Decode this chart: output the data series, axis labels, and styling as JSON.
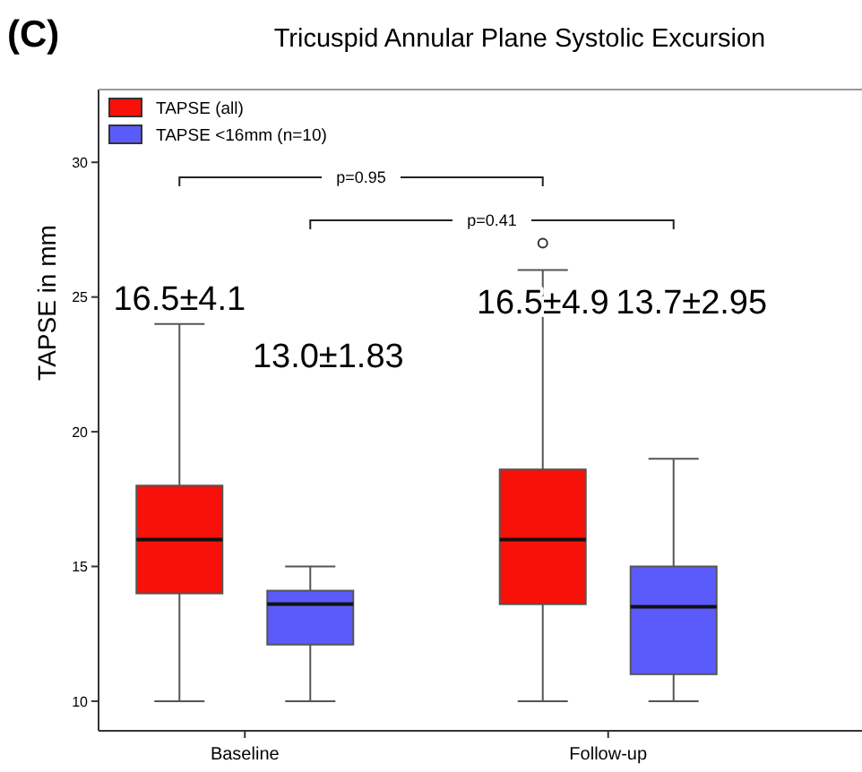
{
  "chart_data": {
    "type": "box",
    "title": "Tricuspid Annular Plane Systolic Excursion",
    "ylabel": "TAPSE in mm",
    "categories": [
      "Baseline",
      "Follow-up"
    ],
    "series": [
      {
        "name": "TAPSE (all)",
        "color": "#f71109",
        "boxes": [
          {
            "low": 10,
            "q1": 14,
            "median": 16,
            "q3": 18,
            "high": 24
          },
          {
            "low": 10,
            "q1": 13.6,
            "median": 16,
            "q3": 18.6,
            "high": 26,
            "outliers": [
              27
            ]
          }
        ]
      },
      {
        "name": "TAPSE <16mm (n=10)",
        "color": "#5b5bfb",
        "boxes": [
          {
            "low": 10,
            "q1": 12.1,
            "median": 13.6,
            "q3": 14.1,
            "high": 15
          },
          {
            "low": 10,
            "q1": 11,
            "median": 13.5,
            "q3": 15,
            "high": 19
          }
        ]
      }
    ],
    "ylim": [
      8.9,
      32.7
    ],
    "yticks": [
      10,
      15,
      20,
      25,
      30
    ],
    "legend": "top left",
    "grid": false,
    "annotations": [
      "(C)",
      "16.5±4.1",
      "13.0±1.83",
      "16.5±4.9",
      "13.7±2.95",
      "p=0.95",
      "p=0.41"
    ]
  }
}
